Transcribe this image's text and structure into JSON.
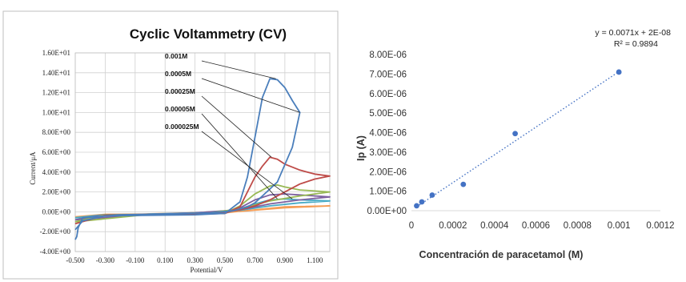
{
  "chart_data": [
    {
      "type": "line",
      "title": "Cyclic Voltammetry (CV)",
      "xlabel": "Potential/V",
      "ylabel": "Current/μA",
      "xlim": [
        -0.5,
        1.2
      ],
      "ylim": [
        -4.0,
        16.0
      ],
      "x_ticks": [
        "-0.500",
        "-0.300",
        "-0.100",
        "0.100",
        "0.300",
        "0.500",
        "0.700",
        "0.900",
        "1.100"
      ],
      "y_ticks": [
        "-4.00E+00",
        "-2.00E+00",
        "0.00E+00",
        "2.00E+00",
        "4.00E+00",
        "6.00E+00",
        "8.00E+00",
        "1.00E+01",
        "1.20E+01",
        "1.40E+01",
        "1.60E+01"
      ],
      "grid": true,
      "series": [
        {
          "name": "0.001M",
          "color": "#4a7ebb",
          "x": [
            -0.5,
            -0.45,
            -0.3,
            0.0,
            0.3,
            0.5,
            0.6,
            0.65,
            0.7,
            0.75,
            0.8,
            0.85,
            0.9,
            0.95,
            1.0,
            0.95,
            0.85,
            0.75,
            0.7,
            0.65,
            0.55,
            0.4,
            0.1,
            -0.2,
            -0.45,
            -0.48,
            -0.49,
            -0.5
          ],
          "y": [
            -1.8,
            -0.9,
            -0.4,
            -0.35,
            -0.3,
            -0.15,
            1.0,
            3.5,
            7.5,
            11.5,
            13.4,
            13.3,
            12.5,
            11.2,
            10.0,
            6.5,
            3.0,
            1.6,
            0.9,
            0.5,
            0.1,
            -0.1,
            -0.2,
            -0.3,
            -0.6,
            -1.6,
            -2.5,
            -2.8
          ]
        },
        {
          "name": "0.0005M",
          "color": "#be4b48",
          "x": [
            -0.5,
            -0.3,
            0.0,
            0.3,
            0.5,
            0.6,
            0.65,
            0.7,
            0.75,
            0.8,
            0.85,
            0.9,
            1.0,
            1.1,
            1.2,
            1.1,
            1.0,
            0.9,
            0.8,
            0.7,
            0.6,
            0.5,
            0.3,
            0.0,
            -0.3,
            -0.5
          ],
          "y": [
            -1.2,
            -0.35,
            -0.3,
            -0.25,
            -0.15,
            0.5,
            2.0,
            3.5,
            4.6,
            5.5,
            5.3,
            4.8,
            4.2,
            3.8,
            3.6,
            3.3,
            2.8,
            2.0,
            1.2,
            0.6,
            0.2,
            -0.05,
            -0.15,
            -0.25,
            -0.35,
            -1.2
          ]
        },
        {
          "name": "0.00025M",
          "color": "#98b954",
          "x": [
            -0.5,
            -0.3,
            0.0,
            0.5,
            0.6,
            0.7,
            0.8,
            0.85,
            0.9,
            1.0,
            1.2,
            1.0,
            0.8,
            0.6,
            0.4,
            0.0,
            -0.5
          ],
          "y": [
            -1.0,
            -0.3,
            -0.3,
            -0.15,
            0.6,
            1.8,
            2.6,
            2.7,
            2.5,
            2.2,
            2.0,
            1.6,
            1.1,
            0.3,
            -0.1,
            -0.25,
            -1.0
          ]
        },
        {
          "name": "0.00005M",
          "color": "#7d60a0",
          "x": [
            -0.5,
            -0.3,
            0.0,
            0.5,
            0.6,
            0.7,
            0.8,
            0.9,
            1.0,
            1.2,
            1.0,
            0.8,
            0.6,
            0.3,
            0.0,
            -0.5
          ],
          "y": [
            -0.8,
            -0.3,
            -0.28,
            -0.15,
            0.4,
            1.2,
            1.7,
            1.8,
            1.7,
            1.5,
            1.2,
            0.8,
            0.2,
            -0.1,
            -0.25,
            -0.8
          ]
        },
        {
          "name": "0.000025M",
          "color": "#46aac5",
          "x": [
            -0.5,
            -0.3,
            0.0,
            0.5,
            0.6,
            0.7,
            0.8,
            0.9,
            1.0,
            1.2,
            1.0,
            0.8,
            0.6,
            0.3,
            0.0,
            -0.5
          ],
          "y": [
            -0.6,
            -0.28,
            -0.26,
            -0.12,
            0.3,
            0.8,
            1.2,
            1.3,
            1.2,
            1.1,
            0.9,
            0.6,
            0.15,
            -0.1,
            -0.22,
            -0.6
          ]
        },
        {
          "name": "",
          "color": "#f59d56",
          "x": [
            -0.5,
            -0.3,
            0.0,
            0.5,
            0.7,
            0.9,
            1.2,
            0.9,
            0.6,
            0.3,
            0.0,
            -0.5
          ],
          "y": [
            -0.5,
            -0.25,
            -0.22,
            -0.1,
            0.2,
            0.5,
            0.6,
            0.4,
            0.05,
            -0.1,
            -0.2,
            -0.5
          ]
        }
      ],
      "annotations": [
        {
          "text": "0.001M",
          "points_to": [
            0.84,
            13.4
          ]
        },
        {
          "text": "0.0005M",
          "points_to": [
            1.0,
            10.0
          ]
        },
        {
          "text": "0.00025M",
          "points_to": [
            0.81,
            5.5
          ]
        },
        {
          "text": "0.00005M",
          "points_to": [
            0.85,
            1.3
          ]
        },
        {
          "text": "0.000025M",
          "points_to": [
            0.95,
            1.3
          ]
        }
      ]
    },
    {
      "type": "scatter",
      "title": "",
      "xlabel": "Concentración de paracetamol (M)",
      "ylabel": "Ip (A)",
      "xlim": [
        0,
        0.0012
      ],
      "ylim": [
        0,
        8e-06
      ],
      "x_ticks": [
        "0",
        "0.0002",
        "0.0004",
        "0.0006",
        "0.0008",
        "0.001",
        "0.0012"
      ],
      "y_ticks": [
        "0.00E+00",
        "1.00E-06",
        "2.00E-06",
        "3.00E-06",
        "4.00E-06",
        "5.00E-06",
        "6.00E-06",
        "7.00E-06",
        "8.00E-06"
      ],
      "grid": false,
      "points": [
        {
          "x": 2.5e-05,
          "y": 2.5e-07
        },
        {
          "x": 5e-05,
          "y": 4.5e-07
        },
        {
          "x": 0.0001,
          "y": 8e-07
        },
        {
          "x": 0.00025,
          "y": 1.35e-06
        },
        {
          "x": 0.0005,
          "y": 3.95e-06
        },
        {
          "x": 0.001,
          "y": 7.1e-06
        }
      ],
      "point_color": "#4472c4",
      "trendline": {
        "slope": 0.0071,
        "intercept": 2e-08,
        "style": "dotted",
        "color": "#4472c4"
      },
      "equation_text": "y = 0.0071x + 2E-08",
      "r2_text": "R² = 0.9894"
    }
  ]
}
